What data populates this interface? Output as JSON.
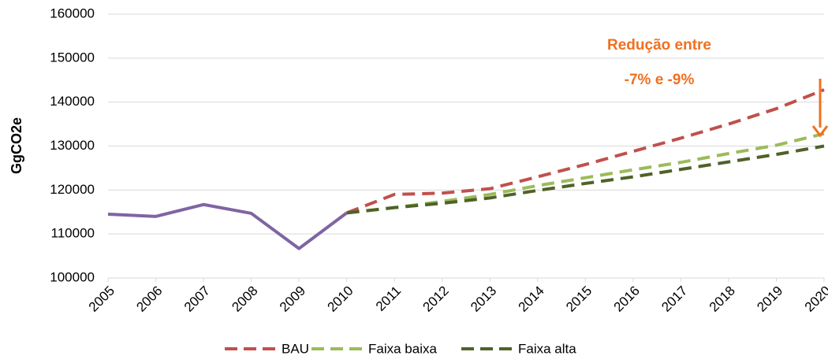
{
  "chart_data": {
    "type": "line",
    "y_label": "GgCO2e",
    "annotations": [
      "Redução entre",
      "-7% e -9%"
    ],
    "annotation_color": "#f07020",
    "x": [
      2005,
      2006,
      2007,
      2008,
      2009,
      2010,
      2011,
      2012,
      2013,
      2014,
      2015,
      2016,
      2017,
      2018,
      2019,
      2020
    ],
    "xlim": [
      2005,
      2020
    ],
    "xticks": [
      2005,
      2006,
      2007,
      2008,
      2009,
      2010,
      2011,
      2012,
      2013,
      2014,
      2015,
      2016,
      2017,
      2018,
      2019,
      2020
    ],
    "ylim": [
      100000,
      160000
    ],
    "yticks": [
      100000,
      110000,
      120000,
      130000,
      140000,
      150000,
      160000
    ],
    "grid": true,
    "legend": "bottom",
    "series": [
      {
        "color": "#8064a2",
        "dashed": false,
        "values": [
          114500,
          114000,
          116700,
          114700,
          106700,
          114800,
          null,
          null,
          null,
          null,
          null,
          null,
          null,
          null,
          null,
          null
        ]
      },
      {
        "name": "BAU",
        "color": "#c0504d",
        "dashed": true,
        "values": [
          null,
          null,
          null,
          null,
          null,
          114800,
          119000,
          119300,
          120300,
          123000,
          125800,
          128800,
          131800,
          135000,
          138500,
          142800
        ]
      },
      {
        "name": "Faixa baixa",
        "color": "#9bbb59",
        "dashed": true,
        "values": [
          null,
          null,
          null,
          null,
          null,
          114800,
          116000,
          117400,
          119000,
          121000,
          122800,
          124600,
          126300,
          128300,
          130200,
          132800
        ]
      },
      {
        "name": "Faixa alta",
        "color": "#4f6228",
        "dashed": true,
        "values": [
          null,
          null,
          null,
          null,
          null,
          114800,
          116000,
          117000,
          118200,
          119900,
          121500,
          123000,
          124700,
          126400,
          128100,
          130000
        ]
      }
    ]
  }
}
